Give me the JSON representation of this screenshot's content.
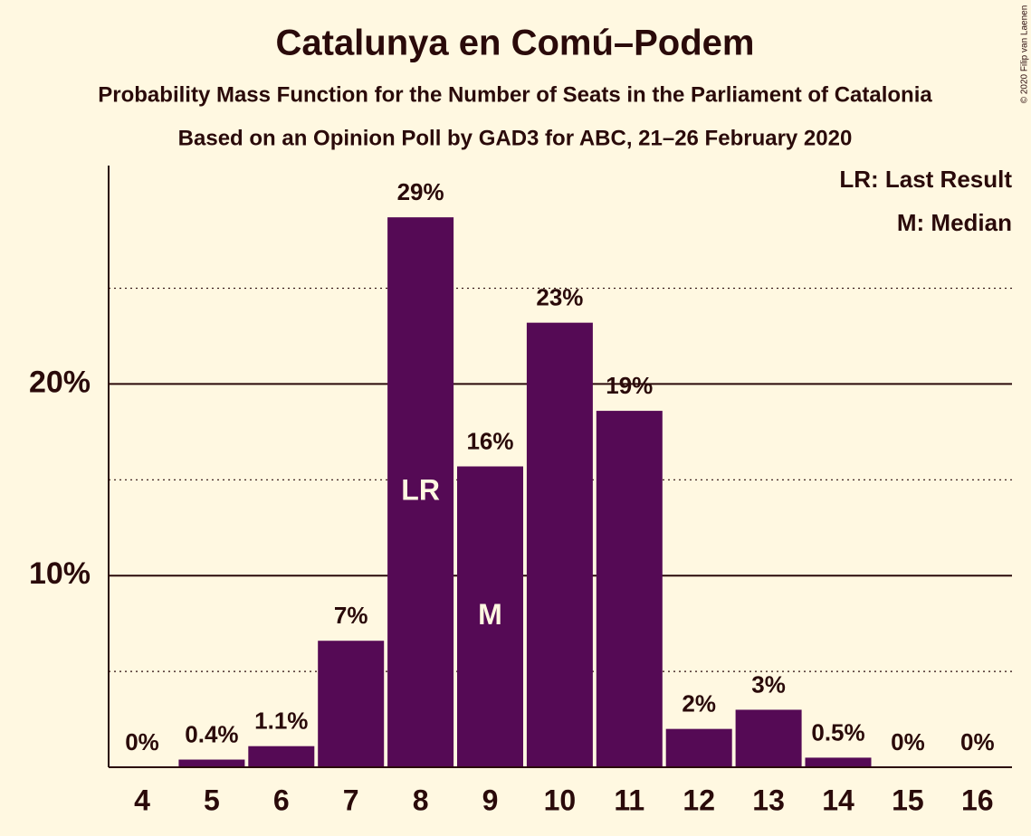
{
  "chart_data": {
    "type": "bar",
    "title": "Catalunya en Comú–Podem",
    "subtitle": "Probability Mass Function for the Number of Seats in the Parliament of Catalonia",
    "subtitle2": "Based on an Opinion Poll by GAD3 for ABC, 21–26 February 2020",
    "copyright": "© 2020 Filip van Laenen",
    "categories": [
      "4",
      "5",
      "6",
      "7",
      "8",
      "9",
      "10",
      "11",
      "12",
      "13",
      "14",
      "15",
      "16"
    ],
    "values": [
      0,
      0.4,
      1.1,
      6.6,
      28.7,
      15.7,
      23.2,
      18.6,
      2.0,
      3.0,
      0.5,
      0,
      0
    ],
    "value_labels": [
      "0%",
      "0.4%",
      "1.1%",
      "7%",
      "29%",
      "16%",
      "23%",
      "19%",
      "2%",
      "3%",
      "0.5%",
      "0%",
      "0%"
    ],
    "color": "#550a55",
    "ylim": [
      0,
      31.4
    ],
    "yticks": [
      {
        "value": 10,
        "label": "10%"
      },
      {
        "value": 20,
        "label": "20%"
      }
    ],
    "minor_yticks": [
      5,
      15,
      25
    ],
    "grid": true,
    "annotations": [
      {
        "index": 4,
        "text": "LR"
      },
      {
        "index": 5,
        "text": "M"
      }
    ],
    "legend_notes": [
      "LR: Last Result",
      "M: Median"
    ]
  }
}
